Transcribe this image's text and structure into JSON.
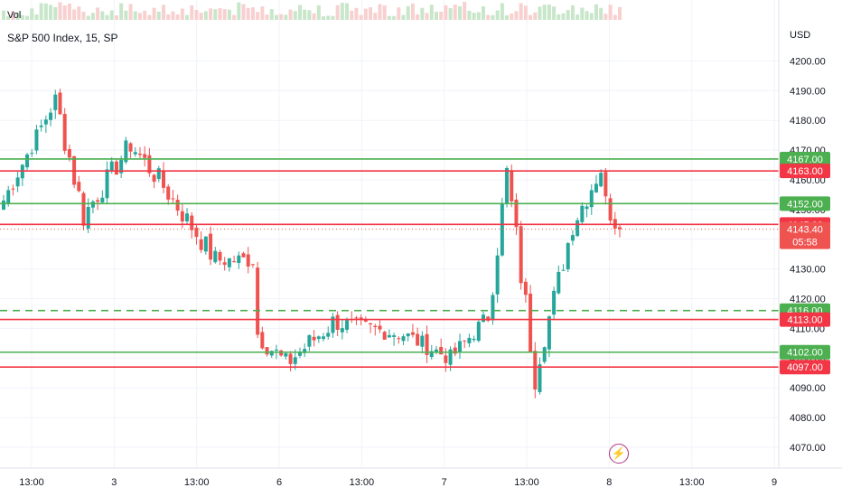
{
  "legend": {
    "symbol": "S&P 500 Index, 15, SP"
  },
  "volume": {
    "label": "Vol"
  },
  "axis": {
    "currency": "USD"
  },
  "countdown": "05:58",
  "colors": {
    "up": "#26a69a",
    "down": "#ef5350",
    "support": "#4caf50",
    "resistance": "#f23645",
    "grid": "#f0f3fa"
  },
  "chart_data": {
    "type": "candlestick",
    "ylim": [
      4063,
      4212
    ],
    "y_ticks": [
      4070,
      4080,
      4090,
      4100,
      4110,
      4120,
      4130,
      4140,
      4150,
      4160,
      4170,
      4180,
      4190,
      4200
    ],
    "y_tick_labels": [
      "4070.00",
      "4080.00",
      "4090.00",
      "4100.00",
      "4110.00",
      "4120.00",
      "4130.00",
      "4140.00",
      "4150.00",
      "4160.00",
      "4170.00",
      "4180.00",
      "4190.00",
      "4200.00"
    ],
    "x_labels": [
      "13:00",
      "3",
      "13:00",
      "6",
      "13:00",
      "7",
      "13:00",
      "8",
      "13:00",
      "9"
    ],
    "grid": true,
    "levels": [
      {
        "value": 4167.0,
        "label": "4167.00",
        "kind": "support",
        "style": "solid"
      },
      {
        "value": 4163.0,
        "label": "4163.00",
        "kind": "resistance",
        "style": "solid"
      },
      {
        "value": 4152.0,
        "label": "4152.00",
        "kind": "support",
        "style": "solid"
      },
      {
        "value": 4145.0,
        "label": "4145.00",
        "kind": "resistance",
        "style": "solid"
      },
      {
        "value": 4116.0,
        "label": "4116.00",
        "kind": "support",
        "style": "dashed"
      },
      {
        "value": 4113.0,
        "label": "4113.00",
        "kind": "resistance",
        "style": "solid"
      },
      {
        "value": 4102.0,
        "label": "4102.00",
        "kind": "support",
        "style": "solid"
      },
      {
        "value": 4097.0,
        "label": "4097.00",
        "kind": "resistance",
        "style": "solid"
      }
    ],
    "last_price": {
      "value": 4143.4,
      "label": "4143.40"
    },
    "segments": [
      {
        "from": 4150,
        "to": 4187,
        "n": 12,
        "noise": 3
      },
      {
        "from": 4187,
        "to": 4148,
        "n": 6,
        "noise": 5
      },
      {
        "from": 4148,
        "to": 4172,
        "n": 10,
        "noise": 4
      },
      {
        "from": 4172,
        "to": 4160,
        "n": 6,
        "noise": 4
      },
      {
        "from": 4160,
        "to": 4133,
        "n": 12,
        "noise": 4
      },
      {
        "from": 4133,
        "to": 4133,
        "n": 8,
        "noise": 3
      },
      {
        "from": 4110,
        "to": 4098,
        "n": 7,
        "noise": 4
      },
      {
        "from": 4098,
        "to": 4112,
        "n": 10,
        "noise": 4
      },
      {
        "from": 4112,
        "to": 4108,
        "n": 15,
        "noise": 3
      },
      {
        "from": 4108,
        "to": 4100,
        "n": 10,
        "noise": 3
      },
      {
        "from": 4100,
        "to": 4114,
        "n": 8,
        "noise": 3
      },
      {
        "from": 4114,
        "to": 4162,
        "n": 4,
        "noise": 5
      },
      {
        "from": 4162,
        "to": 4095,
        "n": 6,
        "noise": 6
      },
      {
        "from": 4095,
        "to": 4145,
        "n": 8,
        "noise": 4
      },
      {
        "from": 4145,
        "to": 4164,
        "n": 6,
        "noise": 4
      },
      {
        "from": 4155,
        "to": 4143.4,
        "n": 4,
        "noise": 4
      }
    ]
  }
}
